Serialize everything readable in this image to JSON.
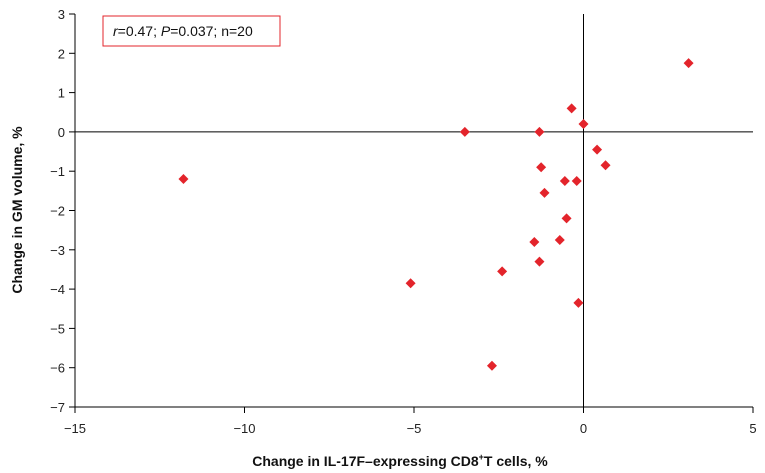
{
  "chart_data": {
    "type": "scatter",
    "xlabel": "Change in IL-17F–expressing CD8",
    "xlabel_sup": "+",
    "xlabel_tail": "T cells, %",
    "ylabel": "Change in GM volume, %",
    "xlim": [
      -15,
      5
    ],
    "ylim": [
      -7,
      3
    ],
    "x_ticks": [
      -15,
      -10,
      -5,
      0,
      5
    ],
    "y_ticks": [
      -7,
      -6,
      -5,
      -4,
      -3,
      -2,
      -1,
      0,
      1,
      2,
      3
    ],
    "x_tick_labels": [
      "−15",
      "−10",
      "−5",
      "0",
      "5"
    ],
    "y_tick_labels": [
      "−7",
      "−6",
      "−5",
      "−4",
      "−3",
      "−2",
      "−1",
      "0",
      "1",
      "2",
      "3"
    ],
    "annotation": {
      "r_label": "r",
      "r_value": "=0.47; ",
      "p_label": "P",
      "p_value": "=0.037; n=20"
    },
    "marker_color": "#e3242b",
    "annotation_border_color": "#e3242b",
    "points": [
      {
        "x": -11.8,
        "y": -1.2
      },
      {
        "x": -5.1,
        "y": -3.85
      },
      {
        "x": -3.5,
        "y": 0.0
      },
      {
        "x": -2.7,
        "y": -5.95
      },
      {
        "x": -2.4,
        "y": -3.55
      },
      {
        "x": -1.45,
        "y": -2.8
      },
      {
        "x": -1.3,
        "y": 0.0
      },
      {
        "x": -1.3,
        "y": -3.3
      },
      {
        "x": -1.25,
        "y": -0.9
      },
      {
        "x": -1.15,
        "y": -1.55
      },
      {
        "x": -0.7,
        "y": -2.75
      },
      {
        "x": -0.55,
        "y": -1.25
      },
      {
        "x": -0.5,
        "y": -2.2
      },
      {
        "x": -0.35,
        "y": 0.6
      },
      {
        "x": -0.2,
        "y": -1.25
      },
      {
        "x": -0.15,
        "y": -4.35
      },
      {
        "x": 0.0,
        "y": 0.2
      },
      {
        "x": 0.4,
        "y": -0.45
      },
      {
        "x": 0.65,
        "y": -0.85
      },
      {
        "x": 3.1,
        "y": 1.75
      }
    ]
  }
}
